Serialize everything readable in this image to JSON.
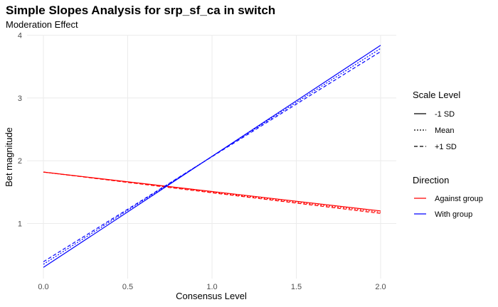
{
  "chart_data": {
    "type": "line",
    "title": "Simple Slopes Analysis for srp_sf_ca in switch",
    "subtitle": "Moderation Effect",
    "xlabel": "Consensus Level",
    "ylabel": "Bet magnitude",
    "xlim": [
      0,
      2
    ],
    "ylim": [
      0.15,
      4
    ],
    "x_ticks": [
      "0.0",
      "0.5",
      "1.0",
      "1.5",
      "2.0"
    ],
    "x_tick_values": [
      0,
      0.5,
      1.0,
      1.5,
      2.0
    ],
    "y_ticks": [
      "1",
      "2",
      "3",
      "4"
    ],
    "y_tick_values": [
      1,
      2,
      3,
      4
    ],
    "grid": true,
    "legend_placement": "right",
    "legend": {
      "scale_title": "Scale Level",
      "scale_entries": [
        {
          "label": "-1 SD",
          "dash": "solid"
        },
        {
          "label": "Mean",
          "dash": "dotted"
        },
        {
          "label": "+1 SD",
          "dash": "dashed"
        }
      ],
      "direction_title": "Direction",
      "direction_entries": [
        {
          "label": "Against group",
          "color": "#ff0000"
        },
        {
          "label": "With group",
          "color": "#0000ff"
        }
      ]
    },
    "series": [
      {
        "direction": "Against group",
        "scale": "-1 SD",
        "x": [
          0,
          2
        ],
        "y": [
          1.82,
          1.2
        ]
      },
      {
        "direction": "Against group",
        "scale": "Mean",
        "x": [
          0,
          2
        ],
        "y": [
          1.82,
          1.18
        ]
      },
      {
        "direction": "Against group",
        "scale": "+1 SD",
        "x": [
          0,
          2
        ],
        "y": [
          1.82,
          1.16
        ]
      },
      {
        "direction": "With group",
        "scale": "-1 SD",
        "x": [
          0,
          2
        ],
        "y": [
          0.3,
          3.84
        ]
      },
      {
        "direction": "With group",
        "scale": "Mean",
        "x": [
          0,
          2
        ],
        "y": [
          0.35,
          3.79
        ]
      },
      {
        "direction": "With group",
        "scale": "+1 SD",
        "x": [
          0,
          2
        ],
        "y": [
          0.39,
          3.74
        ]
      }
    ]
  }
}
